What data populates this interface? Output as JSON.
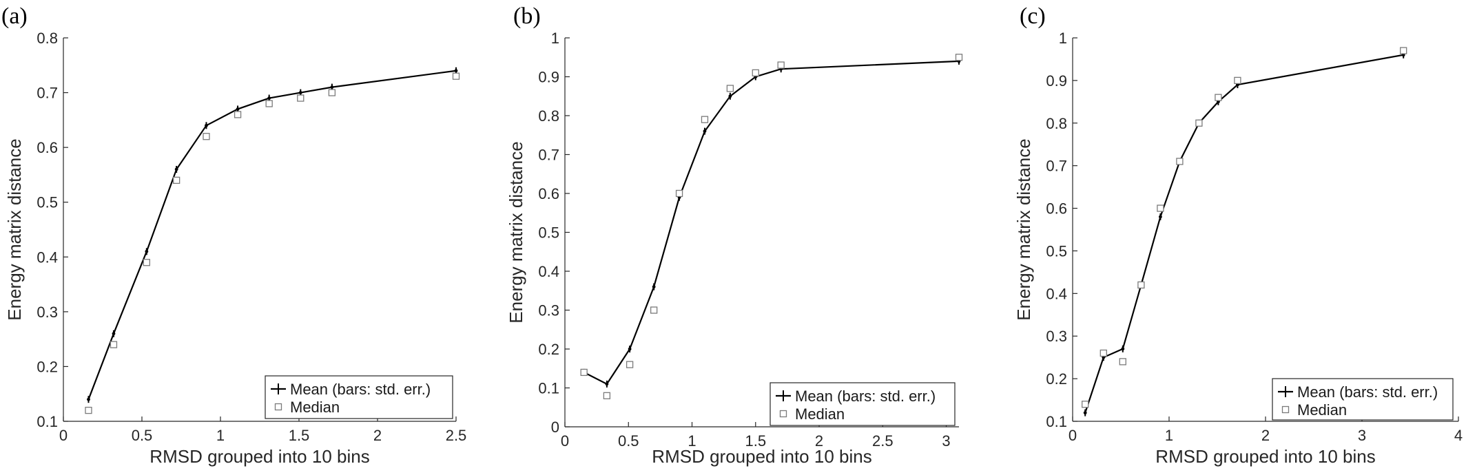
{
  "chart_data": [
    {
      "panel_label": "(a)",
      "type": "line",
      "xlabel": "RMSD grouped into 10 bins",
      "ylabel": "Energy matrix distance",
      "xlim": [
        0,
        2.5
      ],
      "ylim": [
        0.1,
        0.8
      ],
      "xticks": [
        "0",
        "0.5",
        "1",
        "1.5",
        "2",
        "2.5"
      ],
      "yticks": [
        "0.1",
        "0.2",
        "0.3",
        "0.4",
        "0.5",
        "0.6",
        "0.7",
        "0.8"
      ],
      "series": [
        {
          "name": "Mean (bars: std. err.)",
          "marker": "line-errorbar",
          "x": [
            0.16,
            0.32,
            0.53,
            0.72,
            0.91,
            1.11,
            1.31,
            1.51,
            1.71,
            2.5
          ],
          "y": [
            0.14,
            0.26,
            0.41,
            0.56,
            0.64,
            0.67,
            0.69,
            0.7,
            0.71,
            0.74
          ]
        },
        {
          "name": "Median",
          "marker": "square",
          "x": [
            0.16,
            0.32,
            0.53,
            0.72,
            0.91,
            1.11,
            1.31,
            1.51,
            1.71,
            2.5
          ],
          "y": [
            0.12,
            0.24,
            0.39,
            0.54,
            0.62,
            0.66,
            0.68,
            0.69,
            0.7,
            0.73
          ]
        }
      ],
      "legend_position": "bottom-right"
    },
    {
      "panel_label": "(b)",
      "type": "line",
      "xlabel": "RMSD grouped into 10 bins",
      "ylabel": "Energy matrix distance",
      "xlim": [
        0,
        3.1
      ],
      "ylim": [
        0,
        1
      ],
      "xticks": [
        "0",
        "0.5",
        "1",
        "1.5",
        "2",
        "2.5",
        "3"
      ],
      "yticks": [
        "0",
        "0.1",
        "0.2",
        "0.3",
        "0.4",
        "0.5",
        "0.6",
        "0.7",
        "0.8",
        "0.9",
        "1"
      ],
      "series": [
        {
          "name": "Mean (bars: std. err.)",
          "marker": "line-errorbar",
          "x": [
            0.15,
            0.33,
            0.51,
            0.7,
            0.9,
            1.1,
            1.3,
            1.5,
            1.7,
            3.1
          ],
          "y": [
            0.14,
            0.11,
            0.2,
            0.36,
            0.59,
            0.76,
            0.85,
            0.9,
            0.92,
            0.94
          ]
        },
        {
          "name": "Median",
          "marker": "square",
          "x": [
            0.15,
            0.33,
            0.51,
            0.7,
            0.9,
            1.1,
            1.3,
            1.5,
            1.7,
            3.1
          ],
          "y": [
            0.14,
            0.08,
            0.16,
            0.3,
            0.6,
            0.79,
            0.87,
            0.91,
            0.93,
            0.95
          ]
        }
      ],
      "legend_position": "bottom-right"
    },
    {
      "panel_label": "(c)",
      "type": "line",
      "xlabel": "RMSD grouped into 10 bins",
      "ylabel": "Energy matrix distance",
      "xlim": [
        0,
        4
      ],
      "ylim": [
        0.1,
        1
      ],
      "xticks": [
        "0",
        "1",
        "2",
        "3",
        "4"
      ],
      "yticks": [
        "0.1",
        "0.2",
        "0.3",
        "0.4",
        "0.5",
        "0.6",
        "0.7",
        "0.8",
        "0.9",
        "1"
      ],
      "series": [
        {
          "name": "Mean (bars: std. err.)",
          "marker": "line-errorbar",
          "x": [
            0.13,
            0.32,
            0.52,
            0.71,
            0.91,
            1.11,
            1.31,
            1.51,
            1.71,
            3.43
          ],
          "y": [
            0.12,
            0.25,
            0.27,
            0.42,
            0.58,
            0.71,
            0.8,
            0.85,
            0.89,
            0.96
          ]
        },
        {
          "name": "Median",
          "marker": "square",
          "x": [
            0.13,
            0.32,
            0.52,
            0.71,
            0.91,
            1.11,
            1.31,
            1.51,
            1.71,
            3.43
          ],
          "y": [
            0.14,
            0.26,
            0.24,
            0.42,
            0.6,
            0.71,
            0.8,
            0.86,
            0.9,
            0.97
          ]
        }
      ],
      "legend_position": "bottom-right"
    }
  ]
}
